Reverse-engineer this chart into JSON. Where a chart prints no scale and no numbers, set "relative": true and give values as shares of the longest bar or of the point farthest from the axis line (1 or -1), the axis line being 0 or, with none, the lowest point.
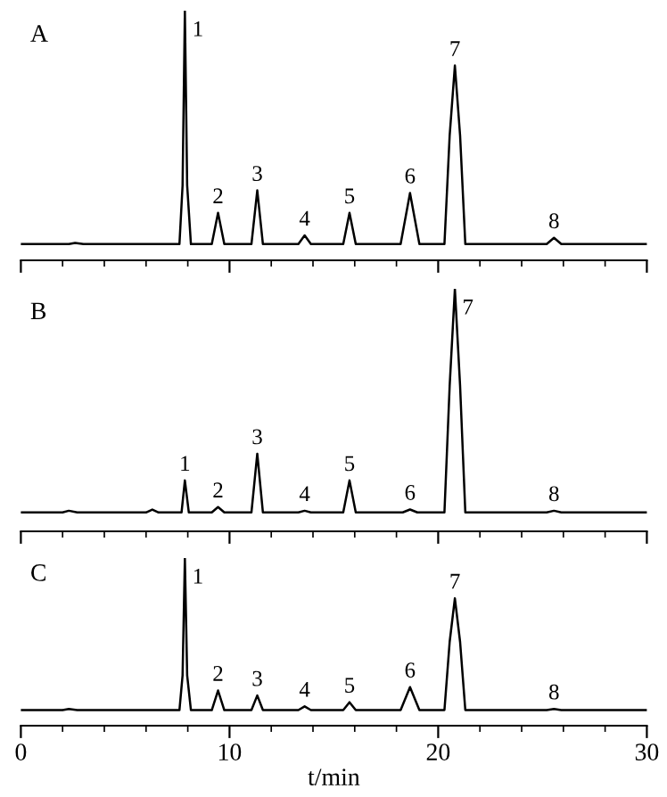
{
  "chart_data": [
    {
      "type": "line",
      "relative": true,
      "xlim": [
        0,
        30
      ],
      "xticks": [
        0,
        {
          "value": 2,
          "label": null
        },
        {
          "value": 4,
          "label": null
        },
        {
          "value": 6,
          "label": null
        },
        {
          "value": 8,
          "label": null
        },
        10,
        {
          "value": 12,
          "label": null
        },
        {
          "value": 14,
          "label": null
        },
        {
          "value": 16,
          "label": null
        },
        {
          "value": 18,
          "label": null
        },
        20,
        {
          "value": 22,
          "label": null
        },
        {
          "value": 24,
          "label": null
        },
        {
          "value": 26,
          "label": null
        },
        {
          "value": 28,
          "label": null
        },
        30
      ],
      "tick_labels": false,
      "series": [
        {
          "color": "#000000",
          "x": [
            0,
            2.3,
            2.6,
            3,
            7.6,
            7.75,
            7.86,
            7.97,
            8.15,
            9.15,
            9.45,
            9.75,
            11.05,
            11.33,
            11.6,
            13.3,
            13.6,
            13.9,
            15.45,
            15.75,
            16.05,
            18.2,
            18.65,
            19.1,
            20.3,
            20.55,
            20.8,
            21.05,
            21.3,
            25.2,
            25.55,
            25.9,
            30
          ],
          "values": [
            0.065,
            0.065,
            0.07,
            0.065,
            0.065,
            0.3,
            1,
            0.3,
            0.065,
            0.065,
            0.19,
            0.065,
            0.065,
            0.28,
            0.065,
            0.065,
            0.1,
            0.065,
            0.065,
            0.19,
            0.065,
            0.065,
            0.27,
            0.065,
            0.065,
            0.5,
            0.78,
            0.5,
            0.065,
            0.065,
            0.09,
            0.065,
            0.065
          ]
        }
      ],
      "annotations": [
        "A",
        {
          "text": "1",
          "x": 7.86,
          "y": 1
        },
        {
          "text": "2",
          "x": 9.45,
          "y": 0.19
        },
        {
          "text": "3",
          "x": 11.33,
          "y": 0.28
        },
        {
          "text": "4",
          "x": 13.6,
          "y": 0.1
        },
        {
          "text": "5",
          "x": 15.75,
          "y": 0.19
        },
        {
          "text": "6",
          "x": 18.65,
          "y": 0.27
        },
        {
          "text": "7",
          "x": 20.8,
          "y": 0.78
        },
        {
          "text": "8",
          "x": 25.55,
          "y": 0.09
        }
      ]
    },
    {
      "type": "line",
      "relative": true,
      "xlim": [
        0,
        30
      ],
      "xticks": [
        0,
        {
          "value": 2,
          "label": null
        },
        {
          "value": 4,
          "label": null
        },
        {
          "value": 6,
          "label": null
        },
        {
          "value": 8,
          "label": null
        },
        10,
        {
          "value": 12,
          "label": null
        },
        {
          "value": 14,
          "label": null
        },
        {
          "value": 16,
          "label": null
        },
        {
          "value": 18,
          "label": null
        },
        20,
        {
          "value": 22,
          "label": null
        },
        {
          "value": 24,
          "label": null
        },
        {
          "value": 26,
          "label": null
        },
        {
          "value": 28,
          "label": null
        },
        30
      ],
      "tick_labels": false,
      "series": [
        {
          "color": "#000000",
          "x": [
            0,
            2.0,
            2.3,
            2.7,
            6.0,
            6.3,
            6.6,
            7.7,
            7.86,
            8.05,
            9.15,
            9.45,
            9.75,
            11.05,
            11.33,
            11.6,
            13.3,
            13.6,
            13.9,
            15.45,
            15.75,
            16.05,
            18.3,
            18.65,
            19.0,
            20.3,
            20.55,
            20.8,
            21.05,
            21.3,
            25.2,
            25.55,
            25.9,
            30
          ],
          "values": [
            0.078,
            0.078,
            0.085,
            0.078,
            0.078,
            0.09,
            0.078,
            0.078,
            0.21,
            0.078,
            0.078,
            0.1,
            0.078,
            0.078,
            0.32,
            0.078,
            0.078,
            0.085,
            0.078,
            0.078,
            0.21,
            0.078,
            0.078,
            0.09,
            0.078,
            0.078,
            0.6,
            1,
            0.6,
            0.078,
            0.078,
            0.085,
            0.078,
            0.078
          ]
        }
      ],
      "annotations": [
        "B",
        {
          "text": "1",
          "x": 7.86,
          "y": 0.21
        },
        {
          "text": "2",
          "x": 9.45,
          "y": 0.1
        },
        {
          "text": "3",
          "x": 11.33,
          "y": 0.32
        },
        {
          "text": "4",
          "x": 13.6,
          "y": 0.085
        },
        {
          "text": "5",
          "x": 15.75,
          "y": 0.21
        },
        {
          "text": "6",
          "x": 18.65,
          "y": 0.09
        },
        {
          "text": "7",
          "x": 20.8,
          "y": 1
        },
        {
          "text": "8",
          "x": 25.55,
          "y": 0.085
        }
      ]
    },
    {
      "type": "line",
      "relative": true,
      "xlim": [
        0,
        30
      ],
      "xticks": [
        0,
        {
          "value": 2,
          "label": null
        },
        {
          "value": 4,
          "label": null
        },
        {
          "value": 6,
          "label": null
        },
        {
          "value": 8,
          "label": null
        },
        10,
        {
          "value": 12,
          "label": null
        },
        {
          "value": 14,
          "label": null
        },
        {
          "value": 16,
          "label": null
        },
        {
          "value": 18,
          "label": null
        },
        20,
        {
          "value": 22,
          "label": null
        },
        {
          "value": 24,
          "label": null
        },
        {
          "value": 26,
          "label": null
        },
        {
          "value": 28,
          "label": null
        },
        30
      ],
      "tick_labels": "x",
      "xlabel": "t/min",
      "series": [
        {
          "color": "#000000",
          "x": [
            0,
            2.0,
            2.3,
            2.7,
            7.6,
            7.75,
            7.86,
            7.97,
            8.15,
            9.15,
            9.45,
            9.75,
            11.05,
            11.33,
            11.6,
            13.3,
            13.6,
            13.9,
            15.45,
            15.75,
            16.05,
            18.2,
            18.65,
            19.1,
            20.3,
            20.55,
            20.8,
            21.05,
            21.3,
            25.2,
            25.55,
            25.9,
            30
          ],
          "values": [
            0.093,
            0.093,
            0.1,
            0.093,
            0.093,
            0.3,
            1,
            0.3,
            0.093,
            0.093,
            0.21,
            0.093,
            0.093,
            0.18,
            0.093,
            0.093,
            0.115,
            0.093,
            0.093,
            0.14,
            0.093,
            0.093,
            0.23,
            0.093,
            0.093,
            0.5,
            0.76,
            0.5,
            0.093,
            0.093,
            0.1,
            0.093,
            0.093
          ]
        }
      ],
      "annotations": [
        "C",
        {
          "text": "1",
          "x": 7.86,
          "y": 1
        },
        {
          "text": "2",
          "x": 9.45,
          "y": 0.21
        },
        {
          "text": "3",
          "x": 11.33,
          "y": 0.18
        },
        {
          "text": "4",
          "x": 13.6,
          "y": 0.115
        },
        {
          "text": "5",
          "x": 15.75,
          "y": 0.14
        },
        {
          "text": "6",
          "x": 18.65,
          "y": 0.23
        },
        {
          "text": "7",
          "x": 20.8,
          "y": 0.76
        },
        {
          "text": "8",
          "x": 25.55,
          "y": 0.1
        }
      ]
    }
  ]
}
